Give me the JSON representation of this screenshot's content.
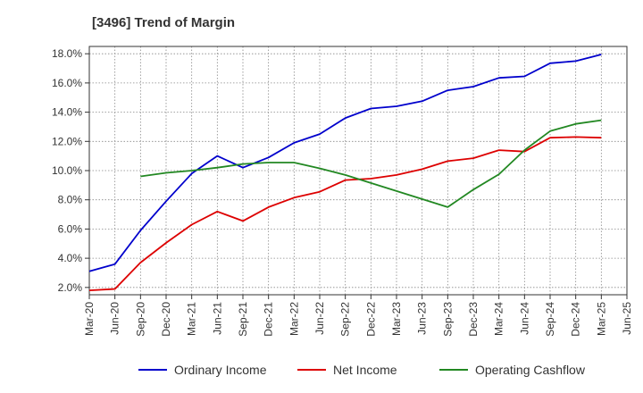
{
  "chart_data": {
    "type": "line",
    "title": "[3496]  Trend of Margin",
    "xlabel": "",
    "ylabel": "",
    "x_ticks": [
      "Mar-20",
      "Jun-20",
      "Sep-20",
      "Dec-20",
      "Mar-21",
      "Jun-21",
      "Sep-21",
      "Dec-21",
      "Mar-22",
      "Jun-22",
      "Sep-22",
      "Dec-22",
      "Mar-23",
      "Jun-23",
      "Sep-23",
      "Dec-23",
      "Mar-24",
      "Jun-24",
      "Sep-24",
      "Dec-24",
      "Mar-25",
      "Jun-25"
    ],
    "y_ticks": [
      "2.0%",
      "4.0%",
      "6.0%",
      "8.0%",
      "10.0%",
      "12.0%",
      "14.0%",
      "16.0%",
      "18.0%"
    ],
    "y_tick_values": [
      2,
      4,
      6,
      8,
      10,
      12,
      14,
      16,
      18
    ],
    "ylim": [
      1.5,
      18.5
    ],
    "grid": true,
    "legend_position": "bottom",
    "series": [
      {
        "name": "Ordinary Income",
        "color": "#0000cc",
        "values": [
          3.1,
          3.6,
          5.9,
          7.9,
          9.8,
          11.0,
          10.2,
          10.9,
          11.9,
          12.5,
          13.6,
          14.25,
          14.4,
          14.75,
          15.5,
          15.75,
          16.35,
          16.45,
          17.35,
          17.5,
          17.95,
          null
        ]
      },
      {
        "name": "Net Income",
        "color": "#dd0000",
        "values": [
          1.8,
          1.9,
          3.7,
          5.05,
          6.3,
          7.2,
          6.55,
          7.5,
          8.15,
          8.55,
          9.35,
          9.45,
          9.7,
          10.1,
          10.65,
          10.85,
          11.4,
          11.3,
          12.25,
          12.3,
          12.25,
          null
        ]
      },
      {
        "name": "Operating Cashflow",
        "color": "#228822",
        "values": [
          null,
          null,
          9.6,
          9.85,
          10.0,
          10.2,
          10.45,
          10.55,
          10.55,
          10.15,
          9.7,
          9.15,
          8.6,
          8.05,
          7.5,
          8.7,
          9.75,
          11.4,
          12.7,
          13.2,
          13.45,
          null
        ]
      }
    ]
  }
}
